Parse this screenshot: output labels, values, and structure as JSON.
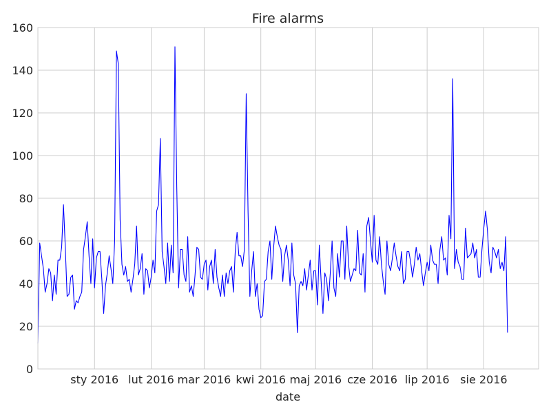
{
  "chart_data": {
    "type": "line",
    "title": "Fire alarms",
    "xlabel": "date",
    "ylabel": "",
    "ylim": [
      0,
      160
    ],
    "xlim": [
      "2015-12-01",
      "2016-08-31"
    ],
    "grid": true,
    "legend": "none",
    "line_color": "#0000ff",
    "y_ticks": [
      0,
      20,
      40,
      60,
      80,
      100,
      120,
      140,
      160
    ],
    "x_ticks": [
      {
        "label": "sty 2016",
        "date": "2016-01-01"
      },
      {
        "label": "lut 2016",
        "date": "2016-02-01"
      },
      {
        "label": "mar 2016",
        "date": "2016-03-01"
      },
      {
        "label": "kwi 2016",
        "date": "2016-04-01"
      },
      {
        "label": "maj 2016",
        "date": "2016-05-01"
      },
      {
        "label": "cze 2016",
        "date": "2016-06-01"
      },
      {
        "label": "lip 2016",
        "date": "2016-07-01"
      },
      {
        "label": "sie 2016",
        "date": "2016-08-01"
      }
    ],
    "series": [
      {
        "x_start": "2015-12-01",
        "x_step": "1 day",
        "values": [
          12,
          59,
          53,
          47,
          36,
          40,
          47,
          45,
          32,
          44,
          35,
          51,
          51,
          57,
          77,
          57,
          34,
          35,
          43,
          44,
          28,
          32,
          31,
          34,
          36,
          56,
          62,
          69,
          53,
          40,
          61,
          38,
          52,
          55,
          55,
          42,
          26,
          39,
          45,
          53,
          47,
          40,
          60,
          149,
          143,
          70,
          49,
          44,
          48,
          41,
          42,
          36,
          42,
          49,
          67,
          44,
          47,
          54,
          35,
          47,
          46,
          38,
          43,
          51,
          45,
          74,
          77,
          108,
          55,
          48,
          40,
          59,
          41,
          58,
          45,
          151,
          85,
          38,
          56,
          56,
          44,
          41,
          62,
          36,
          39,
          34,
          44,
          57,
          56,
          43,
          42,
          49,
          51,
          37,
          48,
          51,
          40,
          56,
          43,
          38,
          34,
          44,
          34,
          45,
          40,
          46,
          48,
          36,
          55,
          64,
          53,
          53,
          48,
          56,
          129,
          74,
          34,
          46,
          55,
          34,
          40,
          28,
          24,
          25,
          41,
          42,
          55,
          60,
          42,
          57,
          67,
          62,
          58,
          56,
          41,
          53,
          58,
          51,
          39,
          59,
          44,
          40,
          17,
          39,
          41,
          39,
          47,
          37,
          44,
          51,
          37,
          46,
          46,
          30,
          58,
          41,
          26,
          45,
          42,
          32,
          45,
          60,
          38,
          34,
          54,
          43,
          60,
          60,
          42,
          67,
          49,
          41,
          44,
          47,
          46,
          65,
          45,
          44,
          54,
          36,
          67,
          71,
          60,
          50,
          72,
          51,
          49,
          62,
          49,
          41,
          35,
          60,
          49,
          46,
          52,
          59,
          53,
          48,
          46,
          55,
          40,
          42,
          55,
          55,
          50,
          43,
          49,
          57,
          51,
          54,
          46,
          39,
          45,
          50,
          46,
          58,
          51,
          49,
          49,
          40,
          56,
          62,
          51,
          52,
          44,
          72,
          61,
          136,
          47,
          56,
          50,
          48,
          42,
          42,
          66,
          52,
          53,
          54,
          59,
          52,
          56,
          43,
          43,
          56,
          66,
          74,
          65,
          50,
          45,
          57,
          55,
          52,
          56,
          47,
          50,
          46,
          62,
          17
        ]
      }
    ]
  }
}
